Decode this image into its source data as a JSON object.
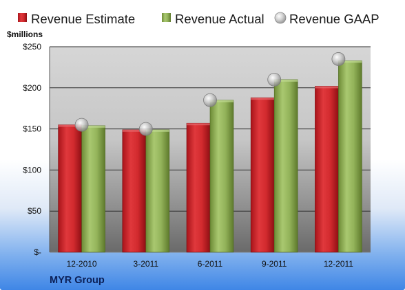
{
  "chart_data": {
    "type": "bar",
    "unit_label": "$millions",
    "company": "MYR Group",
    "categories": [
      "12-2010",
      "3-2011",
      "6-2011",
      "9-2011",
      "12-2011"
    ],
    "series": [
      {
        "name": "Revenue Estimate",
        "kind": "bar",
        "color": "#d42a2e",
        "values": [
          155,
          149,
          157,
          188,
          202
        ]
      },
      {
        "name": "Revenue Actual",
        "kind": "bar",
        "color": "#93b35a",
        "values": [
          154,
          149,
          185,
          210,
          233
        ]
      },
      {
        "name": "Revenue GAAP",
        "kind": "marker",
        "color": "#b4b4b4",
        "values": [
          155,
          150,
          185,
          210,
          235
        ]
      }
    ],
    "y_ticks": [
      {
        "value": 0,
        "label": "$-"
      },
      {
        "value": 50,
        "label": "$50"
      },
      {
        "value": 100,
        "label": "$100"
      },
      {
        "value": 150,
        "label": "$150"
      },
      {
        "value": 200,
        "label": "$200"
      },
      {
        "value": 250,
        "label": "$250"
      }
    ],
    "ylim": [
      0,
      250
    ],
    "grid": true,
    "legend_position": "top"
  }
}
